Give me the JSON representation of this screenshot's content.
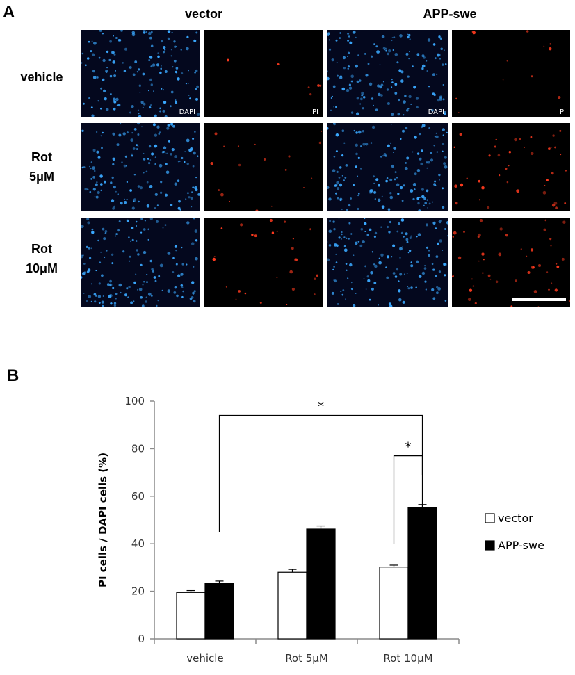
{
  "panel_a": {
    "letter": "A",
    "columns": [
      "vector",
      "APP-swe"
    ],
    "rows": [
      [
        "vehicle"
      ],
      [
        "Rot",
        "5μM"
      ],
      [
        "Rot",
        "10μM"
      ]
    ],
    "stain_labels": [
      "DAPI",
      "PI"
    ],
    "colors": {
      "dapi": "#3aa8ff",
      "pi": "#ff3a1e",
      "background": "#000000"
    },
    "pi_density": [
      [
        0.05,
        0.2
      ],
      [
        0.3,
        0.8
      ],
      [
        0.5,
        1.0
      ]
    ]
  },
  "panel_b": {
    "letter": "B"
  },
  "chart_data": {
    "type": "bar",
    "title": "",
    "xlabel": "",
    "ylabel": "PI cells / DAPI cells (%)",
    "categories": [
      "vehicle",
      "Rot 5μM",
      "Rot 10μM"
    ],
    "series": [
      {
        "name": "vector",
        "values": [
          19.5,
          28.0,
          30.2
        ],
        "errors": [
          0.8,
          1.2,
          0.8
        ],
        "fill": "#ffffff"
      },
      {
        "name": "APP-swe",
        "values": [
          23.5,
          46.2,
          55.3
        ],
        "errors": [
          0.8,
          1.3,
          1.2
        ],
        "fill": "#000000"
      }
    ],
    "yticks": [
      0,
      20,
      40,
      60,
      80,
      100
    ],
    "ylim": [
      0,
      100
    ],
    "grid": false,
    "legend": "right",
    "significance": [
      {
        "from": {
          "category": 0,
          "series": 1,
          "y": 45
        },
        "to": {
          "category": 2,
          "series": 1,
          "y": 55
        },
        "bracket_y": 94,
        "label": "*"
      },
      {
        "from": {
          "category": 2,
          "series": 0,
          "y": 40
        },
        "to": {
          "category": 2,
          "series": 1,
          "y": 69
        },
        "bracket_y": 77,
        "label": "*"
      }
    ]
  }
}
